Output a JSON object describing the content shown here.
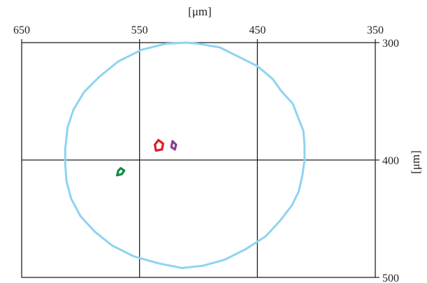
{
  "chart_data": {
    "type": "scatter",
    "title": "",
    "xlabel": "[μm]",
    "ylabel": "[μm]",
    "xlim": [
      650,
      350
    ],
    "ylim": [
      300,
      500
    ],
    "x_ticks": [
      650,
      550,
      450,
      350
    ],
    "y_ticks": [
      300,
      400,
      500
    ],
    "x_tick_labels": [
      "650",
      "550",
      "450",
      "350"
    ],
    "y_tick_labels": [
      "300",
      "400",
      "500"
    ],
    "grid": true,
    "colors": {
      "boundary": "#8fd3f0",
      "red": "#e31b23",
      "purple": "#8a3d8f",
      "green": "#0f8f3f",
      "frame": "#222222",
      "background": "#ffffff"
    },
    "series": [
      {
        "style": "line",
        "color_key": "boundary",
        "points": [
          [
            510,
            300
          ],
          [
            500,
            301
          ],
          [
            482,
            304
          ],
          [
            466,
            312
          ],
          [
            450,
            320
          ],
          [
            437,
            331
          ],
          [
            430,
            341
          ],
          [
            420,
            352
          ],
          [
            415,
            365
          ],
          [
            411,
            375
          ],
          [
            410,
            388
          ],
          [
            410,
            400
          ],
          [
            412,
            414
          ],
          [
            415,
            427
          ],
          [
            421,
            439
          ],
          [
            431,
            452
          ],
          [
            443,
            465
          ],
          [
            460,
            476
          ],
          [
            478,
            485
          ],
          [
            496,
            490
          ],
          [
            514,
            492
          ],
          [
            534,
            488
          ],
          [
            555,
            482
          ],
          [
            573,
            473
          ],
          [
            588,
            461
          ],
          [
            600,
            448
          ],
          [
            608,
            433
          ],
          [
            612,
            418
          ],
          [
            613,
            404
          ],
          [
            613,
            390
          ],
          [
            611,
            372
          ],
          [
            606,
            357
          ],
          [
            597,
            342
          ],
          [
            584,
            329
          ],
          [
            568,
            316
          ],
          [
            548,
            306
          ],
          [
            528,
            301
          ],
          [
            510,
            300
          ]
        ]
      },
      {
        "style": "blob",
        "color_key": "red",
        "points": [
          [
            534,
            383
          ],
          [
            530,
            386
          ],
          [
            531,
            391
          ],
          [
            536,
            392
          ],
          [
            537,
            387
          ],
          [
            534,
            383
          ]
        ]
      },
      {
        "style": "blob",
        "color_key": "purple",
        "points": [
          [
            522,
            384
          ],
          [
            519,
            387
          ],
          [
            520,
            391
          ],
          [
            523,
            389
          ],
          [
            522,
            384
          ]
        ]
      },
      {
        "style": "blob",
        "color_key": "green",
        "points": [
          [
            566,
            407
          ],
          [
            563,
            409
          ],
          [
            565,
            412
          ],
          [
            569,
            413
          ],
          [
            568,
            409
          ],
          [
            566,
            407
          ]
        ]
      }
    ]
  }
}
